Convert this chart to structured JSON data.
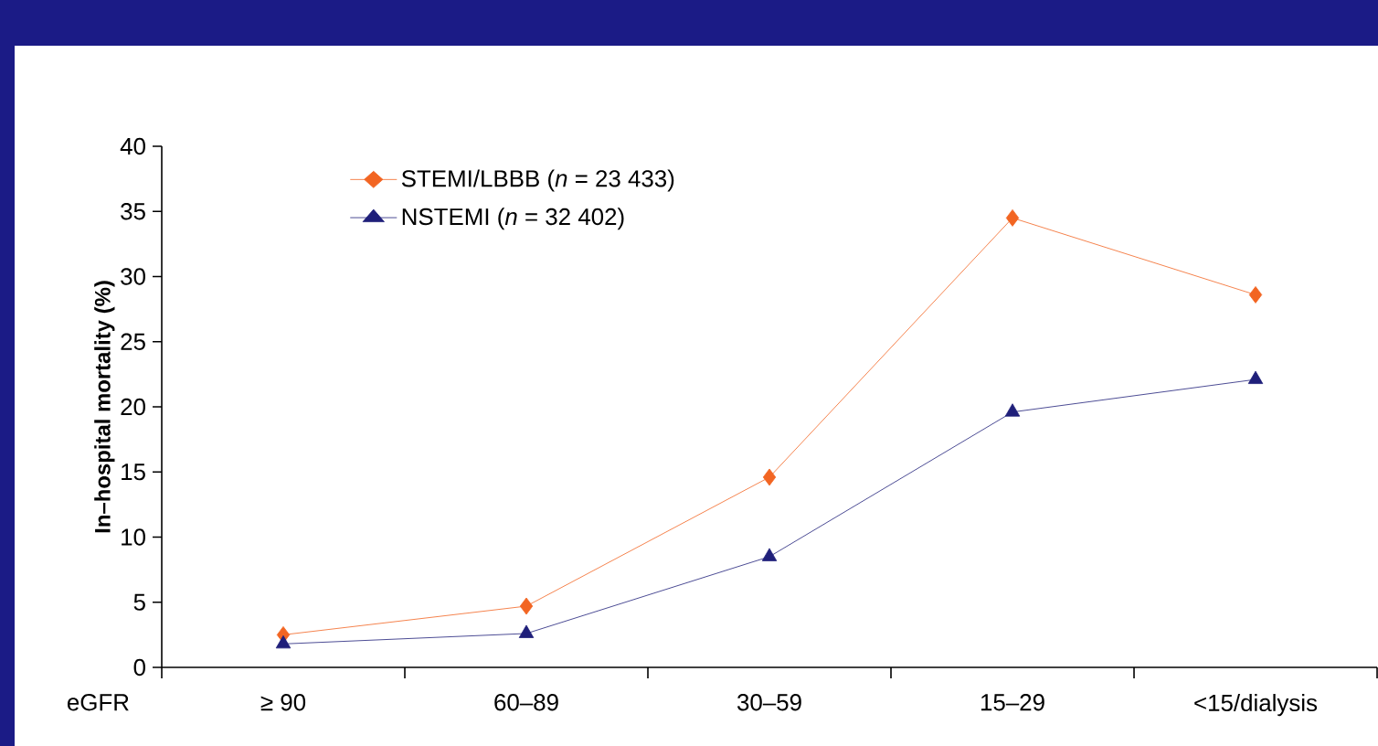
{
  "chart_data": {
    "type": "line",
    "xlabel": "eGFR",
    "ylabel": "In–hospital mortality (%)",
    "categories": [
      "≥ 90",
      "60–89",
      "30–59",
      "15–29",
      "<15/dialysis"
    ],
    "series": [
      {
        "name": "STEMI/LBBB (*n* = 23 433)",
        "color": "#f26522",
        "marker": "diamond",
        "values": [
          2.5,
          4.7,
          14.6,
          34.5,
          28.6
        ]
      },
      {
        "name": "NSTEMI (*n* = 32 402)",
        "color": "#1f1f7a",
        "marker": "triangle",
        "values": [
          1.8,
          2.6,
          8.5,
          19.6,
          22.1
        ]
      }
    ],
    "ylim": [
      0,
      40
    ],
    "yticks": [
      0,
      5,
      10,
      15,
      20,
      25,
      30,
      35,
      40
    ],
    "grid": false,
    "legend": "top left",
    "line_style": "solid"
  }
}
